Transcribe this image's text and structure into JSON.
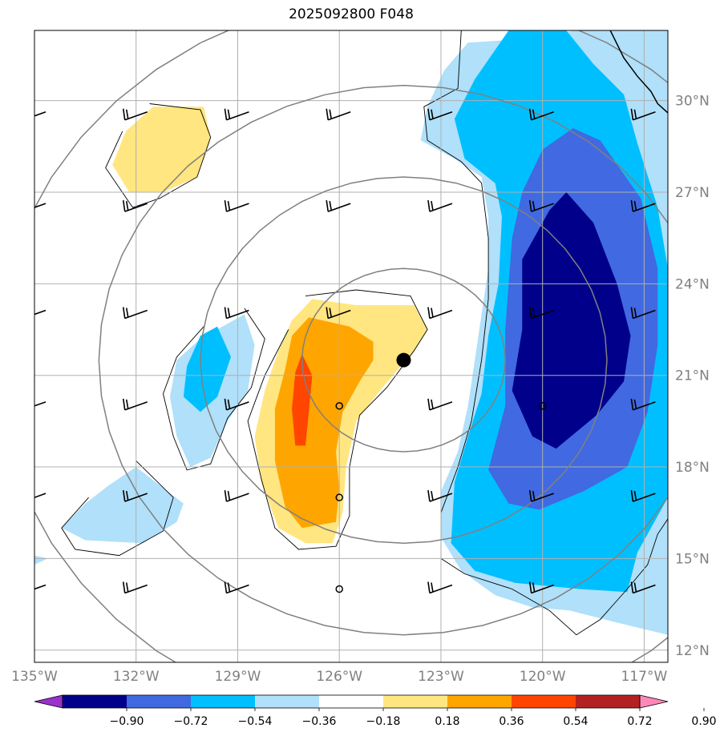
{
  "chart_data": {
    "type": "contour-map",
    "title": "2025092800 F048",
    "lon_range": [
      -135,
      -116.3
    ],
    "lat_range": [
      11.6,
      32.3
    ],
    "lon_ticks": [
      {
        "value": -135,
        "label": "135°W"
      },
      {
        "value": -132,
        "label": "132°W"
      },
      {
        "value": -129,
        "label": "129°W"
      },
      {
        "value": -126,
        "label": "126°W"
      },
      {
        "value": -123,
        "label": "123°W"
      },
      {
        "value": -120,
        "label": "120°W"
      },
      {
        "value": -117,
        "label": "117°W"
      }
    ],
    "lat_ticks": [
      {
        "value": 30,
        "label": "30°N"
      },
      {
        "value": 27,
        "label": "27°N"
      },
      {
        "value": 24,
        "label": "24°N"
      },
      {
        "value": 21,
        "label": "21°N"
      },
      {
        "value": 18,
        "label": "18°N"
      },
      {
        "value": 15,
        "label": "15°N"
      },
      {
        "value": 12,
        "label": "12°N"
      }
    ],
    "colorbar": {
      "levels": [
        "−0.90",
        "−0.72",
        "−0.54",
        "−0.36",
        "−0.18",
        "0.18",
        "0.36",
        "0.54",
        "0.72",
        "0.90"
      ],
      "colors": [
        "#9932cc",
        "#00008b",
        "#4169e1",
        "#00bfff",
        "#b0e0fa",
        "#ffffff",
        "#ffe680",
        "#ffa500",
        "#ff4500",
        "#b22222",
        "#ff88b8"
      ]
    },
    "center_marker": {
      "lon": -124.1,
      "lat": 21.5
    },
    "range_rings": {
      "center_lon": -124.1,
      "center_lat": 21.5,
      "radii_deg": [
        3,
        6,
        9,
        12
      ]
    },
    "shading": [
      {
        "level": "0.18",
        "color": "#ffe680",
        "points": [
          [
            -131.5,
            29.8
          ],
          [
            -130.0,
            29.8
          ],
          [
            -129.8,
            28.8
          ],
          [
            -130.2,
            27.5
          ],
          [
            -131.2,
            27.0
          ],
          [
            -132.2,
            27.0
          ],
          [
            -132.7,
            27.9
          ],
          [
            -132.3,
            29.0
          ]
        ]
      },
      {
        "level": "0.18",
        "color": "#ffe680",
        "points": [
          [
            -126.8,
            23.5
          ],
          [
            -125.5,
            23.3
          ],
          [
            -123.8,
            23.3
          ],
          [
            -123.4,
            22.5
          ],
          [
            -123.8,
            21.8
          ],
          [
            -124.8,
            20.5
          ],
          [
            -125.5,
            19.5
          ],
          [
            -125.8,
            18.0
          ],
          [
            -125.9,
            16.5
          ],
          [
            -126.2,
            15.5
          ],
          [
            -127.0,
            15.5
          ],
          [
            -127.8,
            16.0
          ],
          [
            -128.3,
            17.5
          ],
          [
            -128.5,
            19.0
          ],
          [
            -128.2,
            20.5
          ],
          [
            -127.8,
            21.8
          ],
          [
            -127.4,
            22.8
          ]
        ]
      },
      {
        "level": "0.36",
        "color": "#ffa500",
        "points": [
          [
            -126.9,
            22.9
          ],
          [
            -125.7,
            22.6
          ],
          [
            -125.0,
            22.1
          ],
          [
            -125.0,
            21.5
          ],
          [
            -125.4,
            20.8
          ],
          [
            -125.9,
            19.8
          ],
          [
            -126.1,
            18.5
          ],
          [
            -126.0,
            17.3
          ],
          [
            -126.1,
            16.2
          ],
          [
            -127.1,
            16.0
          ],
          [
            -127.6,
            16.7
          ],
          [
            -127.9,
            18.2
          ],
          [
            -127.9,
            19.9
          ],
          [
            -127.6,
            21.2
          ],
          [
            -127.4,
            22.3
          ]
        ]
      },
      {
        "level": "0.54",
        "color": "#ff4500",
        "points": [
          [
            -127.1,
            21.7
          ],
          [
            -126.8,
            21.0
          ],
          [
            -126.9,
            19.8
          ],
          [
            -127.0,
            18.7
          ],
          [
            -127.3,
            18.7
          ],
          [
            -127.4,
            19.9
          ],
          [
            -127.3,
            21.1
          ]
        ]
      },
      {
        "level": "-0.18",
        "color": "#b0e0fa",
        "points": [
          [
            -122.2,
            31.9
          ],
          [
            -120.8,
            32.0
          ],
          [
            -119.0,
            32.3
          ],
          [
            -116.3,
            32.3
          ],
          [
            -116.3,
            12.5
          ],
          [
            -117.8,
            12.9
          ],
          [
            -119.2,
            13.3
          ],
          [
            -120.3,
            13.4
          ],
          [
            -121.4,
            13.8
          ],
          [
            -122.4,
            14.6
          ],
          [
            -123.0,
            15.7
          ],
          [
            -123.0,
            17.2
          ],
          [
            -122.5,
            18.5
          ],
          [
            -122.2,
            20.0
          ],
          [
            -122.0,
            21.5
          ],
          [
            -121.8,
            23.0
          ],
          [
            -121.6,
            24.5
          ],
          [
            -121.6,
            26.2
          ],
          [
            -121.8,
            27.5
          ],
          [
            -122.6,
            28.1
          ],
          [
            -123.6,
            28.7
          ],
          [
            -123.4,
            29.8
          ],
          [
            -122.9,
            31.0
          ]
        ]
      },
      {
        "level": "-0.18",
        "color": "#b0e0fa",
        "points": [
          [
            -128.8,
            23.0
          ],
          [
            -128.5,
            22.0
          ],
          [
            -128.7,
            20.5
          ],
          [
            -129.3,
            19.5
          ],
          [
            -129.8,
            18.3
          ],
          [
            -130.4,
            18.0
          ],
          [
            -130.8,
            19.0
          ],
          [
            -131.0,
            20.3
          ],
          [
            -130.8,
            21.5
          ],
          [
            -130.1,
            22.2
          ]
        ]
      },
      {
        "level": "-0.18",
        "color": "#b0e0fa",
        "points": [
          [
            -132.0,
            18.0
          ],
          [
            -130.6,
            16.8
          ],
          [
            -130.8,
            16.2
          ],
          [
            -131.8,
            15.5
          ],
          [
            -133.5,
            15.6
          ],
          [
            -134.2,
            16.0
          ],
          [
            -133.5,
            16.8
          ],
          [
            -132.8,
            17.4
          ]
        ]
      },
      {
        "level": "-0.18",
        "color": "#b0e0fa",
        "points": [
          [
            -135.0,
            15.1
          ],
          [
            -134.6,
            15.0
          ],
          [
            -135.0,
            14.8
          ]
        ]
      },
      {
        "level": "-0.36",
        "color": "#00bfff",
        "points": [
          [
            -121.0,
            32.3
          ],
          [
            -119.3,
            32.3
          ],
          [
            -118.5,
            31.2
          ],
          [
            -117.6,
            30.2
          ],
          [
            -117.2,
            28.6
          ],
          [
            -116.6,
            26.5
          ],
          [
            -116.3,
            24.5
          ],
          [
            -116.3,
            17.0
          ],
          [
            -117.2,
            15.2
          ],
          [
            -117.5,
            13.9
          ],
          [
            -118.9,
            14.0
          ],
          [
            -120.8,
            14.2
          ],
          [
            -122.0,
            14.6
          ],
          [
            -122.7,
            15.5
          ],
          [
            -122.6,
            17.5
          ],
          [
            -122.2,
            19.0
          ],
          [
            -121.8,
            20.4
          ],
          [
            -121.6,
            22.3
          ],
          [
            -121.3,
            24.0
          ],
          [
            -121.2,
            26.2
          ],
          [
            -121.4,
            27.3
          ],
          [
            -122.3,
            28.1
          ],
          [
            -122.6,
            29.4
          ],
          [
            -122.0,
            30.7
          ]
        ]
      },
      {
        "level": "-0.36",
        "color": "#00bfff",
        "points": [
          [
            -129.6,
            22.6
          ],
          [
            -129.2,
            21.6
          ],
          [
            -129.6,
            20.3
          ],
          [
            -130.1,
            19.8
          ],
          [
            -130.6,
            20.3
          ],
          [
            -130.5,
            21.3
          ],
          [
            -130.1,
            22.3
          ]
        ]
      },
      {
        "level": "-0.54",
        "color": "#4169e1",
        "points": [
          [
            -119.1,
            29.1
          ],
          [
            -118.3,
            28.7
          ],
          [
            -117.1,
            26.8
          ],
          [
            -116.6,
            24.5
          ],
          [
            -116.6,
            22.0
          ],
          [
            -116.9,
            19.8
          ],
          [
            -117.5,
            18.0
          ],
          [
            -118.8,
            17.2
          ],
          [
            -120.1,
            16.6
          ],
          [
            -121.0,
            16.8
          ],
          [
            -121.6,
            17.9
          ],
          [
            -121.1,
            20.0
          ],
          [
            -121.1,
            22.5
          ],
          [
            -120.9,
            25.5
          ],
          [
            -120.6,
            27.0
          ],
          [
            -120.0,
            28.4
          ]
        ]
      },
      {
        "level": "-0.72",
        "color": "#00008b",
        "points": [
          [
            -119.3,
            27.0
          ],
          [
            -118.5,
            26.0
          ],
          [
            -117.8,
            24.0
          ],
          [
            -117.4,
            22.3
          ],
          [
            -117.6,
            20.8
          ],
          [
            -118.4,
            19.7
          ],
          [
            -119.6,
            18.6
          ],
          [
            -120.3,
            19.0
          ],
          [
            -120.9,
            20.5
          ],
          [
            -120.6,
            22.5
          ],
          [
            -120.6,
            24.8
          ],
          [
            -119.8,
            26.4
          ]
        ]
      }
    ],
    "contours": [
      [
        [
          -131.6,
          29.9
        ],
        [
          -130.1,
          29.7
        ],
        [
          -129.8,
          28.8
        ],
        [
          -130.2,
          27.5
        ],
        [
          -131.3,
          26.8
        ],
        [
          -132.1,
          26.5
        ],
        [
          -132.9,
          27.8
        ],
        [
          -132.4,
          29.0
        ]
      ],
      [
        [
          -127.0,
          23.6
        ],
        [
          -125.5,
          23.8
        ],
        [
          -123.9,
          23.6
        ],
        [
          -123.4,
          22.5
        ],
        [
          -123.8,
          21.8
        ],
        [
          -124.6,
          20.6
        ],
        [
          -125.4,
          19.7
        ],
        [
          -125.7,
          18.0
        ],
        [
          -125.7,
          16.4
        ],
        [
          -126.1,
          15.4
        ],
        [
          -127.2,
          15.3
        ],
        [
          -127.9,
          16.0
        ],
        [
          -128.3,
          17.6
        ],
        [
          -128.7,
          19.5
        ],
        [
          -128.2,
          21.0
        ],
        [
          -127.5,
          22.5
        ]
      ],
      [
        [
          -128.8,
          23.2
        ],
        [
          -128.2,
          22.2
        ],
        [
          -128.6,
          20.6
        ],
        [
          -129.3,
          19.6
        ],
        [
          -129.8,
          18.1
        ],
        [
          -130.5,
          17.9
        ],
        [
          -130.9,
          19.0
        ],
        [
          -131.2,
          20.4
        ],
        [
          -130.8,
          21.6
        ],
        [
          -130.0,
          22.6
        ]
      ],
      [
        [
          -132.0,
          18.2
        ],
        [
          -130.9,
          17.0
        ],
        [
          -131.2,
          15.9
        ],
        [
          -132.5,
          15.1
        ],
        [
          -133.8,
          15.3
        ],
        [
          -134.2,
          16.0
        ],
        [
          -133.4,
          17.0
        ]
      ],
      [
        [
          -122.4,
          32.3
        ],
        [
          -122.5,
          30.4
        ],
        [
          -123.5,
          29.8
        ],
        [
          -123.4,
          28.7
        ],
        [
          -122.4,
          28.0
        ],
        [
          -121.8,
          27.3
        ],
        [
          -121.6,
          25.5
        ],
        [
          -121.6,
          23.5
        ],
        [
          -121.8,
          21.5
        ],
        [
          -122.1,
          19.5
        ],
        [
          -122.5,
          18.0
        ],
        [
          -123.0,
          16.5
        ],
        [
          -123.0,
          15.0
        ],
        [
          -122.3,
          14.5
        ],
        [
          -120.9,
          14.0
        ],
        [
          -119.8,
          13.3
        ],
        [
          -119.0,
          12.5
        ],
        [
          -118.3,
          13.0
        ],
        [
          -117.5,
          14.0
        ],
        [
          -116.9,
          14.8
        ],
        [
          -116.6,
          15.8
        ],
        [
          -116.3,
          16.3
        ]
      ]
    ],
    "wind_barbs": [
      {
        "lon": -135.0,
        "lat": 29.5
      },
      {
        "lon": -132.0,
        "lat": 29.5
      },
      {
        "lon": -129.0,
        "lat": 29.5
      },
      {
        "lon": -126.0,
        "lat": 29.5
      },
      {
        "lon": -123.0,
        "lat": 29.5
      },
      {
        "lon": -120.0,
        "lat": 29.5
      },
      {
        "lon": -117.0,
        "lat": 29.5
      },
      {
        "lon": -135.0,
        "lat": 26.5
      },
      {
        "lon": -132.0,
        "lat": 26.5
      },
      {
        "lon": -129.0,
        "lat": 26.5
      },
      {
        "lon": -126.0,
        "lat": 26.5
      },
      {
        "lon": -123.0,
        "lat": 26.5
      },
      {
        "lon": -120.0,
        "lat": 26.5
      },
      {
        "lon": -117.0,
        "lat": 26.5
      },
      {
        "lon": -135.0,
        "lat": 23.0
      },
      {
        "lon": -132.0,
        "lat": 23.0
      },
      {
        "lon": -129.0,
        "lat": 23.0
      },
      {
        "lon": -126.0,
        "lat": 23.0
      },
      {
        "lon": -123.0,
        "lat": 23.0
      },
      {
        "lon": -120.0,
        "lat": 23.0
      },
      {
        "lon": -117.0,
        "lat": 23.0
      },
      {
        "lon": -135.0,
        "lat": 20.0
      },
      {
        "lon": -132.0,
        "lat": 20.0
      },
      {
        "lon": -129.0,
        "lat": 20.0
      },
      {
        "lon": -123.0,
        "lat": 20.0
      },
      {
        "lon": -117.0,
        "lat": 20.0
      },
      {
        "lon": -135.0,
        "lat": 17.0
      },
      {
        "lon": -132.0,
        "lat": 17.0
      },
      {
        "lon": -129.0,
        "lat": 17.0
      },
      {
        "lon": -123.0,
        "lat": 17.0
      },
      {
        "lon": -120.0,
        "lat": 17.0
      },
      {
        "lon": -117.0,
        "lat": 17.0
      },
      {
        "lon": -135.0,
        "lat": 14.0
      },
      {
        "lon": -132.0,
        "lat": 14.0
      },
      {
        "lon": -129.0,
        "lat": 14.0
      },
      {
        "lon": -123.0,
        "lat": 14.0
      },
      {
        "lon": -120.0,
        "lat": 14.0
      },
      {
        "lon": -117.0,
        "lat": 14.0
      }
    ],
    "calm_circles": [
      {
        "lon": -126.0,
        "lat": 20.0
      },
      {
        "lon": -120.0,
        "lat": 20.0
      },
      {
        "lon": -126.0,
        "lat": 17.0
      },
      {
        "lon": -126.0,
        "lat": 14.0
      }
    ],
    "coastline": [
      [
        -118.0,
        32.3
      ],
      [
        -117.6,
        31.4
      ],
      [
        -117.2,
        30.8
      ],
      [
        -116.8,
        30.3
      ],
      [
        -116.6,
        29.9
      ],
      [
        -116.3,
        29.6
      ]
    ]
  }
}
